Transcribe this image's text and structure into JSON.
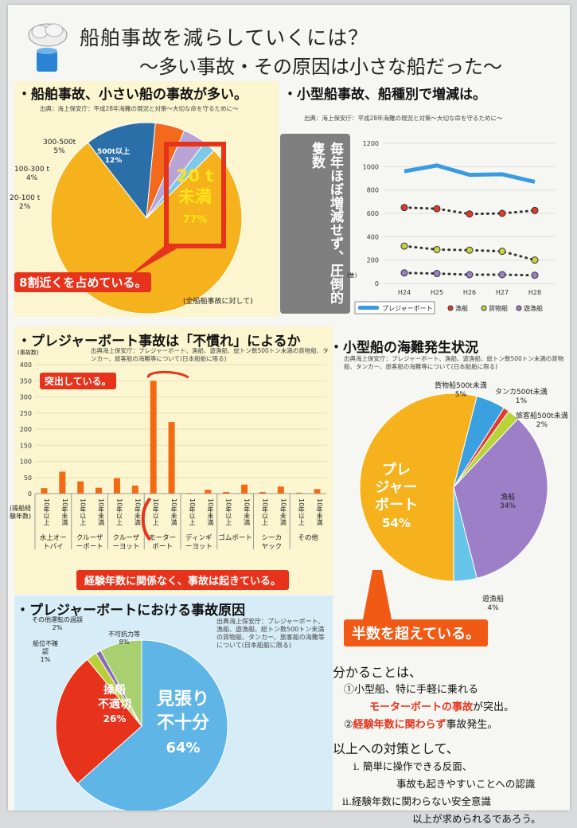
{
  "header": {
    "title_line1": "船舶事故を減らしていくには？",
    "title_line2": "〜多い事故・その原因は小さな船だった〜"
  },
  "panel1": {
    "title": "・船舶事故、小さい船の事故が多い。",
    "source": "出典：海上保安庁：平成28年海難の現況と対策〜大切な命を守るために〜",
    "note": "(全船舶事故に対して)",
    "callout": "8割近くを占めている。",
    "highlight_label1": "20 t",
    "highlight_label2": "未満",
    "highlight_pct": "77%",
    "labels": [
      {
        "name": "300-500t",
        "pct": "5%"
      },
      {
        "name": "100-300 t",
        "pct": "4%"
      },
      {
        "name": "20-100 t",
        "pct": "2%"
      },
      {
        "name": "500t以上",
        "pct": "12%"
      }
    ]
  },
  "panel2": {
    "title": "・小型船事故、船種別で増減は。",
    "source": "出典：海上保安庁：平成28年海難の現況と対策〜大切な命を守るために〜",
    "callout": "毎年ほぼ増減せず、圧倒的隻数",
    "yunit": "(隻)"
  },
  "panel3": {
    "title": "・プレジャーボート事故は「不慣れ」によるか",
    "yunit": "(事故数)",
    "source": "出典海上保安庁：プレジャーボート、漁船、遊漁船、総トン数500トン未満の貨物船、タンカー、旅客船の海難等について(日本船舶に限る)",
    "callout_top": "突出している。",
    "callout_bottom": "経験年数に関係なく、事故は起きている。",
    "row_label": "(操船経験年数)",
    "sub_labels": [
      "10年以上",
      "10年未満"
    ],
    "groups": [
      "水上オートバイ",
      "クルーザーボート",
      "クルーザーヨット",
      "モーターボート",
      "ディンギーヨット",
      "ゴムボート",
      "シーカヤック",
      "その他"
    ]
  },
  "panel4": {
    "title": "・小型船の海難発生状況",
    "source": "出典海上保安庁：プレジャーボート、漁船、遊漁船、総トン数500トン未満の貨物船、タンカー、旅客船の海難等について(日本船舶に限る)",
    "callout": "半数を超えている。",
    "big_label1": "プレ",
    "big_label2": "ジャー",
    "big_label3": "ボート",
    "big_pct": "54%",
    "labels": [
      {
        "name": "貨物船500t未満",
        "pct": "5%"
      },
      {
        "name": "タンカ500t未満",
        "pct": "1%"
      },
      {
        "name": "旅客船500t未満",
        "pct": "2%"
      },
      {
        "name": "漁船",
        "pct": "34%"
      },
      {
        "name": "遊漁船",
        "pct": "4%"
      }
    ]
  },
  "panel5": {
    "title": "・プレジャーボートにおける事故原因",
    "source": "出典海上保安庁：プレジャーボート、漁船、遊漁船、総トン数500トン未満の貨物船、タンカー、旅客船の海難等について(日本船舶に限る)",
    "big1": "見張り",
    "big2": "不十分",
    "big_pct": "64%",
    "mid1": "操船",
    "mid2": "不適切",
    "mid_pct": "26%",
    "labels": [
      {
        "name": "その他運転の過誤",
        "pct": "2%"
      },
      {
        "name": "船位不確認",
        "pct": "1%"
      },
      {
        "name": "不可抗力等",
        "pct": "8%"
      }
    ]
  },
  "summary": {
    "heading": "分かることは、",
    "line1": "①小型船、特に手軽に乗れる",
    "line2": "モーターボートの事故",
    "line2b": "が突出。",
    "line3a": "②",
    "line3b": "経験年数に関わらず",
    "line3c": "事故発生。",
    "heading2": "以上への対策として、",
    "line4": "i. 簡単に操作できる反面、",
    "line5": "事故も起きやすいことへの認識",
    "line6": "ii.経験年数に関わらない安全意識",
    "line7": "以上が求められるであろう。"
  },
  "chart_data": [
    {
      "type": "pie",
      "categories": [
        "20 t 未満",
        "500t以上",
        "300-500t",
        "100-300 t",
        "20-100 t"
      ],
      "values": [
        77,
        12,
        5,
        4,
        2
      ],
      "colors": [
        "#f5b21c",
        "#2a6fa8",
        "#f36a1c",
        "#b9a4d6",
        "#7ec8e8"
      ]
    },
    {
      "type": "line",
      "categories": [
        "H24",
        "H25",
        "H26",
        "H27",
        "H28"
      ],
      "ylim": [
        0,
        1200
      ],
      "yticks": [
        0,
        200,
        400,
        600,
        800,
        1000,
        1200
      ],
      "series": [
        {
          "name": "プレジャーボート",
          "values": [
            960,
            1010,
            930,
            935,
            870
          ],
          "color": "#3b9be0"
        },
        {
          "name": "漁船",
          "values": [
            650,
            640,
            595,
            600,
            625
          ],
          "color": "#e23a2a"
        },
        {
          "name": "貨物船",
          "values": [
            320,
            290,
            285,
            275,
            200
          ],
          "color": "#c8d43a"
        },
        {
          "name": "遊漁船",
          "values": [
            90,
            85,
            75,
            75,
            70
          ],
          "color": "#9d7fc7"
        }
      ]
    },
    {
      "type": "bar",
      "categories": [
        "水上オートバイ 10年以上",
        "水上オートバイ 10年未満",
        "クルーザーボート 10年以上",
        "クルーザーボート 10年未満",
        "クルーザーヨット 10年以上",
        "クルーザーヨット 10年未満",
        "モーターボート 10年以上",
        "モーターボート 10年未満",
        "ディンギーヨット 10年以上",
        "ディンギーヨット 10年未満",
        "ゴムボート 10年以上",
        "ゴムボート 10年未満",
        "シーカヤック 10年以上",
        "シーカヤック 10年未満",
        "その他 10年以上",
        "その他 10年未満"
      ],
      "values": [
        17,
        68,
        38,
        18,
        48,
        25,
        350,
        222,
        2,
        12,
        5,
        28,
        5,
        22,
        3,
        14
      ],
      "ylim": [
        0,
        400
      ],
      "yticks": [
        0,
        50,
        100,
        150,
        200,
        250,
        300,
        350,
        400
      ],
      "color": "#f46a12"
    },
    {
      "type": "pie",
      "categories": [
        "プレジャーボート",
        "貨物船500t未満",
        "タンカ500t未満",
        "旅客船500t未満",
        "漁船",
        "遊漁船"
      ],
      "values": [
        54,
        5,
        1,
        2,
        34,
        4
      ],
      "colors": [
        "#f5b21c",
        "#3aa0e0",
        "#e23a2a",
        "#b6d437",
        "#9d7fc7",
        "#66c4ea"
      ]
    },
    {
      "type": "pie",
      "categories": [
        "見張り不十分",
        "操船不適切",
        "その他運転の過誤",
        "船位不確認",
        "不可抗力等"
      ],
      "values": [
        64,
        26,
        2,
        1,
        8
      ],
      "colors": [
        "#5eb5e6",
        "#e8331c",
        "#b9cf3a",
        "#8a6cb6",
        "#a8d070"
      ]
    }
  ]
}
